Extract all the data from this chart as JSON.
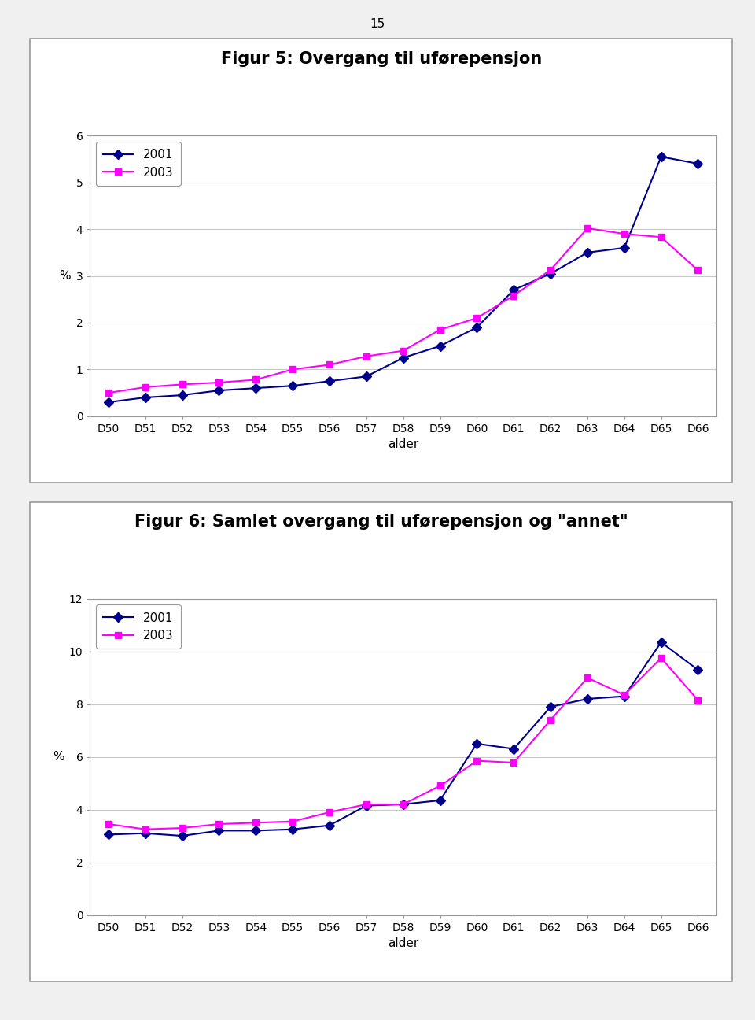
{
  "page_number": "15",
  "chart1": {
    "title": "Figur 5: Overgang til uførepensjon",
    "categories": [
      "D50",
      "D51",
      "D52",
      "D53",
      "D54",
      "D55",
      "D56",
      "D57",
      "D58",
      "D59",
      "D60",
      "D61",
      "D62",
      "D63",
      "D64",
      "D65",
      "D66"
    ],
    "series_2001": [
      0.3,
      0.4,
      0.45,
      0.55,
      0.6,
      0.65,
      0.75,
      0.85,
      1.25,
      1.5,
      1.9,
      2.7,
      3.05,
      3.5,
      3.6,
      5.55,
      5.4
    ],
    "series_2003": [
      0.5,
      0.62,
      0.68,
      0.72,
      0.78,
      1.0,
      1.1,
      1.28,
      1.4,
      1.85,
      2.1,
      2.58,
      3.13,
      4.02,
      3.9,
      3.83,
      3.12
    ],
    "ylabel": "%",
    "xlabel": "alder",
    "ylim": [
      0,
      6
    ],
    "yticks": [
      0,
      1,
      2,
      3,
      4,
      5,
      6
    ],
    "color_2001": "#00008B",
    "color_2003": "#FF00FF",
    "marker_2001": "D",
    "marker_2003": "s"
  },
  "chart2": {
    "title": "Figur 6: Samlet overgang til uførepensjon og \"annet\"",
    "categories": [
      "D50",
      "D51",
      "D52",
      "D53",
      "D54",
      "D55",
      "D56",
      "D57",
      "D58",
      "D59",
      "D60",
      "D61",
      "D62",
      "D63",
      "D64",
      "D65",
      "D66"
    ],
    "series_2001": [
      3.05,
      3.1,
      3.0,
      3.2,
      3.2,
      3.25,
      3.4,
      4.15,
      4.2,
      4.35,
      6.5,
      6.3,
      7.9,
      8.2,
      8.3,
      10.35,
      9.3
    ],
    "series_2003": [
      3.45,
      3.25,
      3.3,
      3.45,
      3.5,
      3.55,
      3.9,
      4.2,
      4.2,
      4.9,
      5.85,
      5.78,
      7.4,
      9.0,
      8.35,
      9.75,
      8.15
    ],
    "ylabel": "%",
    "xlabel": "alder",
    "ylim": [
      0,
      12
    ],
    "yticks": [
      0,
      2,
      4,
      6,
      8,
      10,
      12
    ],
    "color_2001": "#00008B",
    "color_2003": "#FF00FF",
    "marker_2001": "D",
    "marker_2003": "s"
  },
  "bg_color": "#f0f0f0",
  "plot_bg_color": "#ffffff",
  "box_bg_color": "#ffffff",
  "grid_color": "#c8c8c8",
  "border_color": "#999999",
  "title_fontsize": 15,
  "label_fontsize": 11,
  "tick_fontsize": 10,
  "legend_fontsize": 11,
  "line_width": 1.5,
  "marker_size": 6
}
